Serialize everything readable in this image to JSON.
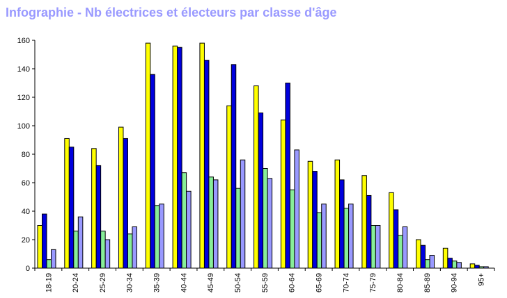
{
  "chart_data": {
    "type": "bar",
    "title": "Infographie - Nb électrices et électeurs par classe d'âge",
    "xlabel": "",
    "ylabel": "",
    "ylim": [
      0,
      160
    ],
    "yticks": [
      0,
      20,
      40,
      60,
      80,
      100,
      120,
      140,
      160
    ],
    "grid": false,
    "legend": "none",
    "categories": [
      "18-19",
      "20-24",
      "25-29",
      "30-34",
      "35-39",
      "40-44",
      "45-49",
      "50-54",
      "55-59",
      "60-64",
      "65-69",
      "70-74",
      "75-79",
      "80-84",
      "85-89",
      "90-94",
      "95+"
    ],
    "series": [
      {
        "color": "#ffff00",
        "values": [
          30,
          91,
          84,
          99,
          158,
          156,
          158,
          114,
          128,
          104,
          75,
          76,
          65,
          53,
          20,
          14,
          3
        ]
      },
      {
        "color": "#0000dd",
        "values": [
          38,
          85,
          72,
          91,
          136,
          155,
          146,
          143,
          109,
          130,
          68,
          62,
          51,
          41,
          16,
          7,
          2
        ]
      },
      {
        "color": "#88ee99",
        "values": [
          6,
          26,
          26,
          24,
          44,
          67,
          64,
          56,
          70,
          55,
          39,
          42,
          30,
          23,
          6,
          5,
          1
        ]
      },
      {
        "color": "#9999ff",
        "values": [
          13,
          36,
          20,
          29,
          45,
          54,
          62,
          76,
          63,
          83,
          45,
          45,
          30,
          29,
          9,
          4,
          1
        ]
      }
    ]
  }
}
